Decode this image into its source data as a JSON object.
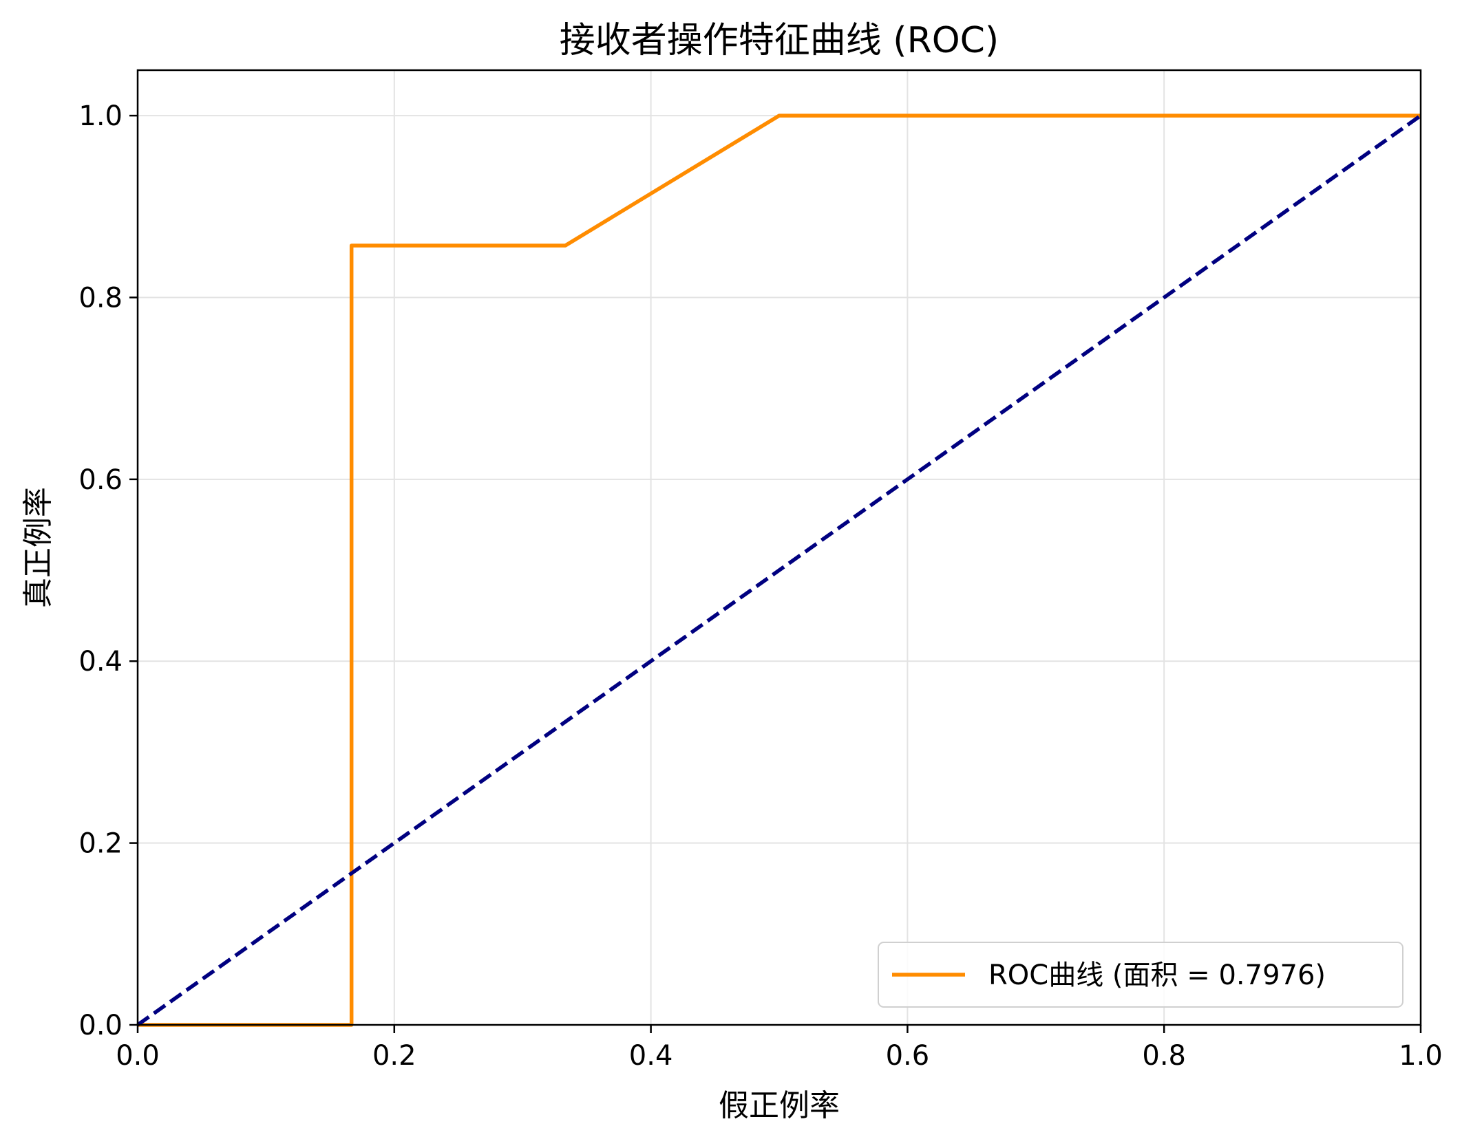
{
  "chart_data": {
    "type": "line",
    "title": "接收者操作特征曲线 (ROC)",
    "xlabel": "假正例率",
    "ylabel": "真正例率",
    "xlim": [
      0.0,
      1.0
    ],
    "ylim": [
      0.0,
      1.05
    ],
    "xticks": [
      0.0,
      0.2,
      0.4,
      0.6,
      0.8,
      1.0
    ],
    "xtick_labels": [
      "0.0",
      "0.2",
      "0.4",
      "0.6",
      "0.8",
      "1.0"
    ],
    "yticks": [
      0.0,
      0.2,
      0.4,
      0.6,
      0.8,
      1.0
    ],
    "ytick_labels": [
      "0.0",
      "0.2",
      "0.4",
      "0.6",
      "0.8",
      "1.0"
    ],
    "grid": true,
    "legend_position": "lower-right",
    "series": [
      {
        "name": "ROC曲线 (面积 = 0.7976)",
        "style": "solid",
        "color": "#ff8c00",
        "x": [
          0.0,
          0.1667,
          0.1667,
          0.3333,
          0.5,
          1.0
        ],
        "y": [
          0.0,
          0.0,
          0.8571,
          0.8571,
          1.0,
          1.0
        ]
      },
      {
        "style": "dashed",
        "color": "#000080",
        "x": [
          0.0,
          1.0
        ],
        "y": [
          0.0,
          1.0
        ]
      }
    ]
  }
}
